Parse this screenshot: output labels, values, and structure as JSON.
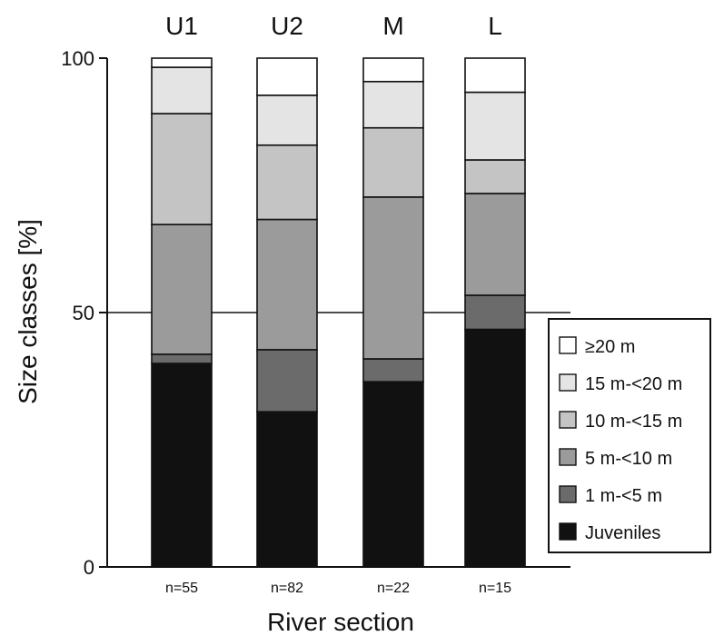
{
  "chart_data": {
    "type": "bar",
    "stacked": true,
    "title": "",
    "xlabel": "River section",
    "ylabel": "Size classes [%]",
    "ylim": [
      0,
      100
    ],
    "yticks": [
      "0",
      "50",
      "100"
    ],
    "gridlines": [
      50
    ],
    "legend_position": "bottom-right",
    "categories": [
      "U1",
      "U2",
      "M",
      "L"
    ],
    "sample_sizes": [
      "n=55",
      "n=82",
      "n=22",
      "n=15"
    ],
    "series": [
      {
        "name": "Juveniles",
        "color": "#111111",
        "values": [
          40,
          30.5,
          36.4,
          46.7
        ]
      },
      {
        "name": "1 m-<5 m",
        "color": "#6b6b6b",
        "values": [
          1.8,
          12.2,
          4.5,
          6.7
        ]
      },
      {
        "name": "5 m-<10 m",
        "color": "#9b9b9b",
        "values": [
          25.5,
          25.6,
          31.8,
          20
        ]
      },
      {
        "name": "10 m-<15 m",
        "color": "#c4c4c4",
        "values": [
          21.8,
          14.6,
          13.6,
          6.6
        ]
      },
      {
        "name": "15 m-<20 m",
        "color": "#e4e4e4",
        "values": [
          9.1,
          9.8,
          9.1,
          13.3
        ]
      },
      {
        "name": "≥20 m",
        "color": "#ffffff",
        "values": [
          1.8,
          7.3,
          4.6,
          6.7
        ]
      }
    ]
  }
}
